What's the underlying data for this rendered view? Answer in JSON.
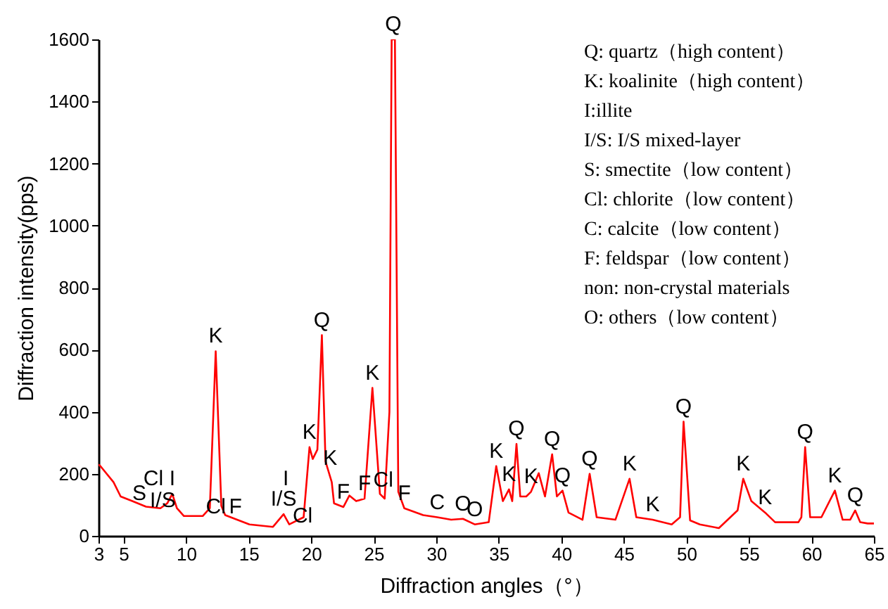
{
  "chart_data": {
    "type": "line",
    "xlabel": "Diffraction angles（°）",
    "ylabel": "Diffraction intensity(pps)",
    "xlim": [
      3,
      65
    ],
    "xticks": [
      3,
      5,
      10,
      15,
      20,
      25,
      30,
      35,
      40,
      45,
      50,
      55,
      60,
      65
    ],
    "ylim": [
      0,
      1600
    ],
    "yticks": [
      0,
      200,
      400,
      600,
      800,
      1000,
      1200,
      1400,
      1600
    ],
    "grid": false,
    "marker": "none",
    "line_style": "solid",
    "x": [
      3,
      3.15,
      4.2,
      4.77,
      5.7,
      6.8,
      7.95,
      8.5,
      8.9,
      9.27,
      9.83,
      11.33,
      11.9,
      12.37,
      12.82,
      13.13,
      15.07,
      16.95,
      17.8,
      18.25,
      19.4,
      19.87,
      20.13,
      20.5,
      20.86,
      21.15,
      21.65,
      21.83,
      22.58,
      23.06,
      23.6,
      24.27,
      24.9,
      25.5,
      25.88,
      26.26,
      26.44,
      26.7,
      26.97,
      27.45,
      28.96,
      30.08,
      31.2,
      32.14,
      33.08,
      34.2,
      34.8,
      35.33,
      35.82,
      36.08,
      36.42,
      36.72,
      37.2,
      37.58,
      38.2,
      38.7,
      39.27,
      39.65,
      40.1,
      40.58,
      41.7,
      42.27,
      42.83,
      44.33,
      45.46,
      46,
      47.3,
      48.83,
      49.5,
      49.78,
      50.3,
      51.08,
      52.6,
      54.1,
      54.55,
      55.2,
      56.3,
      57.1,
      58.96,
      59.2,
      59.5,
      59.9,
      60.8,
      61.88,
      62.5,
      63.1,
      63.5,
      63.9,
      64.5,
      65
    ],
    "series": [
      {
        "color": "#ff0000",
        "values": [
          230,
          225,
          173,
          127,
          112,
          94,
          89,
          105,
          135,
          89,
          64,
          64,
          89,
          595,
          97,
          67,
          37,
          29,
          70,
          37,
          60,
          286,
          248,
          278,
          647,
          240,
          173,
          105,
          93,
          130,
          112,
          120,
          477,
          135,
          120,
          399,
          1600,
          1600,
          142,
          89,
          67,
          60,
          52,
          55,
          37,
          44,
          225,
          112,
          150,
          112,
          296,
          127,
          127,
          142,
          202,
          127,
          263,
          127,
          146,
          75,
          52,
          200,
          60,
          52,
          184,
          60,
          52,
          37,
          60,
          368,
          50,
          37,
          25,
          82,
          184,
          112,
          75,
          44,
          44,
          60,
          286,
          60,
          60,
          146,
          52,
          52,
          82,
          44,
          40,
          40
        ]
      }
    ],
    "annotations": [
      "Q: quartz（high content）",
      "K: koalinite（high content）",
      "I:illite",
      "I/S: I/S mixed-layer",
      "S: smectite（low content）",
      "Cl: chlorite（low content）",
      "C: calcite（low content）",
      "F: feldspar（low content）",
      "non: non-crystal materials",
      "O: others（low content）",
      "S",
      "Cl",
      "I/S",
      "Cl",
      "F",
      "I",
      "Cl",
      "K",
      "Cl",
      {
        "text": "I",
        "x": 8.9,
        "y": 135
      },
      {
        "text": "K",
        "x": 12.37,
        "y": 595
      },
      {
        "text": "I/S",
        "x": 17.8,
        "y": 70
      },
      {
        "text": "K",
        "x": 19.87,
        "y": 286
      },
      {
        "text": "Q",
        "x": 20.86,
        "y": 647
      },
      {
        "text": "F",
        "x": 22.58,
        "y": 93
      },
      {
        "text": "F",
        "x": 24.27,
        "y": 120
      },
      {
        "text": "K",
        "x": 24.9,
        "y": 477
      },
      {
        "text": "Q",
        "x": 26.57,
        "y": 1600
      },
      {
        "text": "F",
        "x": 27.45,
        "y": 89
      },
      {
        "text": "C",
        "x": 30.08,
        "y": 60
      },
      {
        "text": "O",
        "x": 32.14,
        "y": 55
      },
      {
        "text": "O",
        "x": 33.08,
        "y": 37
      },
      {
        "text": "K",
        "x": 34.8,
        "y": 225
      },
      {
        "text": "K",
        "x": 35.82,
        "y": 150
      },
      {
        "text": "Q",
        "x": 36.42,
        "y": 296
      },
      {
        "text": "K",
        "x": 37.58,
        "y": 142
      },
      {
        "text": "Q",
        "x": 39.27,
        "y": 263
      },
      {
        "text": "Q",
        "x": 40.1,
        "y": 146
      },
      {
        "text": "Q",
        "x": 42.27,
        "y": 200
      },
      {
        "text": "K",
        "x": 45.46,
        "y": 184
      },
      {
        "text": "K",
        "x": 47.3,
        "y": 52
      },
      {
        "text": "Q",
        "x": 49.78,
        "y": 368
      },
      {
        "text": "K",
        "x": 54.55,
        "y": 184
      },
      {
        "text": "K",
        "x": 56.3,
        "y": 75
      },
      {
        "text": "Q",
        "x": 59.5,
        "y": 286
      },
      {
        "text": "K",
        "x": 61.88,
        "y": 146
      },
      {
        "text": "Q",
        "x": 63.5,
        "y": 82
      }
    ]
  }
}
